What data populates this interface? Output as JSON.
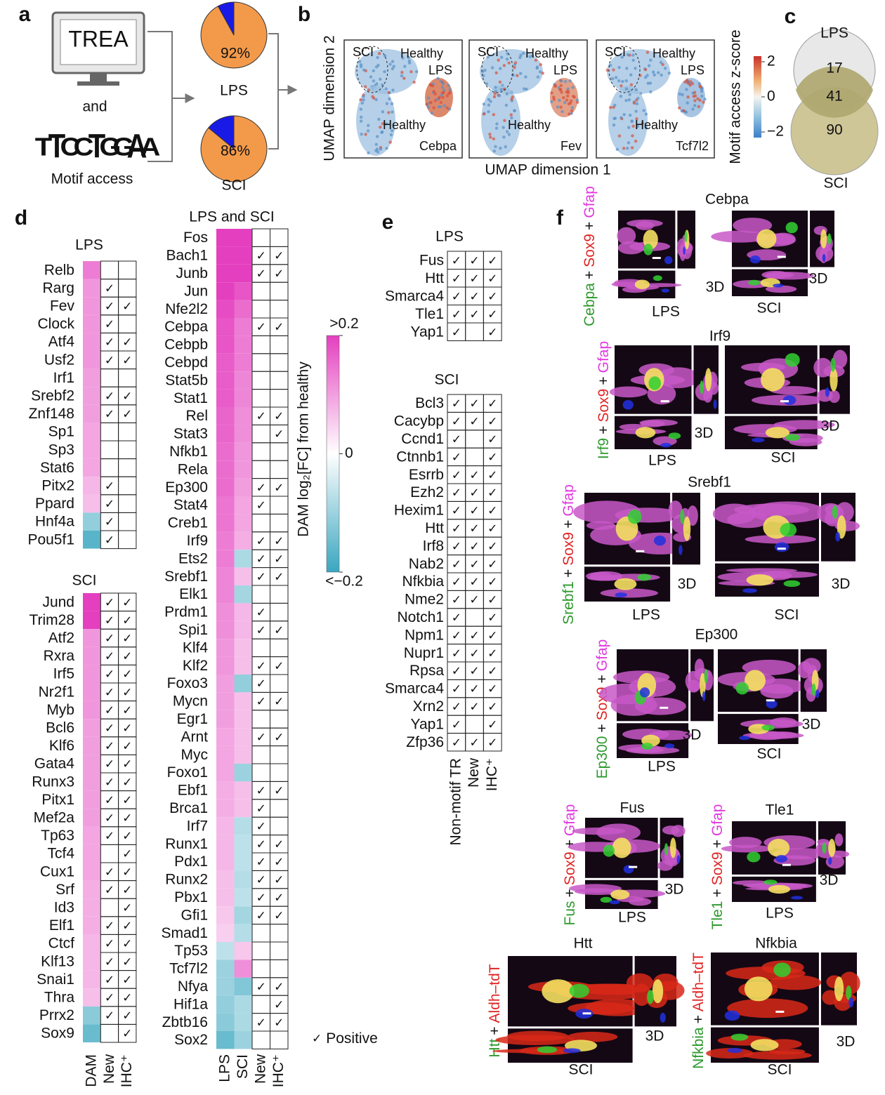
{
  "panel_a": {
    "label": "a",
    "monitor_text": "TREA",
    "and": "and",
    "motif_logo": [
      "T",
      "T",
      "C",
      "C",
      "T",
      "G",
      "G",
      "A",
      "A"
    ],
    "logo_colors": [
      "#d62020",
      "#d62020",
      "#2040d0",
      "#2040d0",
      "#d62020",
      "#e8a020",
      "#e8a020",
      "#20a020",
      "#20a020"
    ],
    "motif_access": "Motif access",
    "pies": [
      {
        "name": "LPS",
        "value": 92,
        "value_label": "92%"
      },
      {
        "name": "SCI",
        "value": 86,
        "value_label": "86%"
      }
    ],
    "pie_colors": [
      "#f39a4a",
      "#1a1ae6"
    ]
  },
  "panel_b": {
    "label": "b",
    "xlabel": "UMAP dimension 1",
    "ylabel": "UMAP dimension 2",
    "genes": [
      "Cebpa",
      "Fev",
      "Tcf7l2"
    ],
    "regions": [
      "SCI",
      "Healthy",
      "LPS",
      "Healthy"
    ],
    "colorbar": {
      "title": "Motif access z-score",
      "lim": [
        -2,
        2
      ],
      "ticks": [
        2,
        0,
        {
          "value": -2,
          "label": "−2"
        }
      ]
    }
  },
  "panel_c": {
    "label": "c",
    "sets": [
      "LPS",
      "SCI"
    ],
    "lps_only": 17,
    "both": 41,
    "sci_only": 90
  },
  "panel_d": {
    "label": "d",
    "check": "✓",
    "legend": "Positive",
    "lps": {
      "title": "LPS",
      "rows": [
        [
          "Relb",
          0.1,
          false,
          false
        ],
        [
          "Rarg",
          0.07,
          true,
          false
        ],
        [
          "Fev",
          0.07,
          true,
          true
        ],
        [
          "Clock",
          0.07,
          true,
          false
        ],
        [
          "Atf4",
          0.07,
          true,
          true
        ],
        [
          "Usf2",
          0.07,
          true,
          true
        ],
        [
          "Irf1",
          0.06,
          false,
          false
        ],
        [
          "Srebf2",
          0.06,
          true,
          true
        ],
        [
          "Znf148",
          0.06,
          true,
          true
        ],
        [
          "Sp1",
          0.05,
          false,
          false
        ],
        [
          "Sp3",
          0.05,
          false,
          false
        ],
        [
          "Stat6",
          0.05,
          false,
          false
        ],
        [
          "Pitx2",
          0.03,
          true,
          false
        ],
        [
          "Ppard",
          0.02,
          true,
          false
        ],
        [
          "Hnf4a",
          -0.07,
          true,
          false
        ],
        [
          "Pou5f1",
          -0.14,
          true,
          false
        ]
      ]
    },
    "sci": {
      "title": "SCI",
      "columns": [
        "DAM",
        "New",
        "IHC⁺"
      ],
      "rows": [
        [
          "Jund",
          0.18,
          true,
          true
        ],
        [
          "Trim28",
          0.18,
          true,
          true
        ],
        [
          "Atf2",
          0.07,
          true,
          true
        ],
        [
          "Rxra",
          0.07,
          true,
          true
        ],
        [
          "Irf5",
          0.07,
          true,
          true
        ],
        [
          "Nr2f1",
          0.07,
          true,
          true
        ],
        [
          "Myb",
          0.07,
          true,
          true
        ],
        [
          "Bcl6",
          0.06,
          true,
          true
        ],
        [
          "Klf6",
          0.06,
          true,
          true
        ],
        [
          "Gata4",
          0.06,
          true,
          true
        ],
        [
          "Runx3",
          0.06,
          true,
          true
        ],
        [
          "Pitx1",
          0.06,
          true,
          true
        ],
        [
          "Mef2a",
          0.06,
          true,
          true
        ],
        [
          "Tp63",
          0.05,
          true,
          true
        ],
        [
          "Tcf4",
          0.05,
          false,
          true
        ],
        [
          "Cux1",
          0.05,
          true,
          true
        ],
        [
          "Srf",
          0.04,
          true,
          true
        ],
        [
          "Id3",
          0.04,
          false,
          true
        ],
        [
          "Elf1",
          0.04,
          true,
          true
        ],
        [
          "Ctcf",
          0.03,
          true,
          true
        ],
        [
          "Klf13",
          0.03,
          true,
          true
        ],
        [
          "Snai1",
          0.03,
          true,
          true
        ],
        [
          "Thra",
          0.02,
          true,
          true
        ],
        [
          "Prrx2",
          -0.08,
          true,
          true
        ],
        [
          "Sox9",
          -0.12,
          false,
          true
        ]
      ]
    },
    "both": {
      "title": "LPS and SCI",
      "columns": [
        "LPS",
        "SCI",
        "New",
        "IHC⁺"
      ],
      "rows": [
        [
          "Fos",
          0.2,
          0.2,
          false,
          false
        ],
        [
          "Bach1",
          0.2,
          0.2,
          true,
          true
        ],
        [
          "Junb",
          0.2,
          0.2,
          true,
          true
        ],
        [
          "Jun",
          0.18,
          0.15,
          false,
          false
        ],
        [
          "Nfe2l2",
          0.16,
          0.12,
          false,
          false
        ],
        [
          "Cebpa",
          0.15,
          0.1,
          true,
          true
        ],
        [
          "Cebpb",
          0.15,
          0.1,
          false,
          false
        ],
        [
          "Cebpd",
          0.14,
          0.1,
          false,
          false
        ],
        [
          "Stat5b",
          0.14,
          0.09,
          false,
          false
        ],
        [
          "Stat1",
          0.14,
          0.09,
          false,
          false
        ],
        [
          "Rel",
          0.13,
          0.08,
          true,
          true
        ],
        [
          "Stat3",
          0.13,
          0.08,
          false,
          true
        ],
        [
          "Nfkb1",
          0.12,
          0.07,
          false,
          false
        ],
        [
          "Rela",
          0.12,
          0.07,
          false,
          false
        ],
        [
          "Ep300",
          0.12,
          0.06,
          true,
          true
        ],
        [
          "Stat4",
          0.11,
          0.05,
          true,
          false
        ],
        [
          "Creb1",
          0.11,
          0.05,
          false,
          false
        ],
        [
          "Irf9",
          0.1,
          0.04,
          true,
          true
        ],
        [
          "Ets2",
          0.1,
          -0.04,
          true,
          true
        ],
        [
          "Srebf1",
          0.09,
          0.02,
          true,
          true
        ],
        [
          "Elk1",
          0.09,
          -0.05,
          false,
          false
        ],
        [
          "Prdm1",
          0.08,
          0.03,
          true,
          false
        ],
        [
          "Spi1",
          0.08,
          0.03,
          true,
          true
        ],
        [
          "Klf4",
          0.07,
          0.02,
          false,
          false
        ],
        [
          "Klf2",
          0.07,
          0.02,
          true,
          true
        ],
        [
          "Foxo3",
          0.06,
          -0.07,
          true,
          false
        ],
        [
          "Mycn",
          0.06,
          0.02,
          true,
          true
        ],
        [
          "Egr1",
          0.06,
          0.02,
          false,
          false
        ],
        [
          "Arnt",
          0.05,
          0.02,
          true,
          true
        ],
        [
          "Myc",
          0.05,
          0.02,
          false,
          false
        ],
        [
          "Foxo1",
          0.05,
          -0.06,
          false,
          false
        ],
        [
          "Ebf1",
          0.04,
          0.02,
          true,
          true
        ],
        [
          "Brca1",
          0.04,
          0.02,
          true,
          false
        ],
        [
          "Irf7",
          0.03,
          -0.03,
          true,
          false
        ],
        [
          "Runx1",
          0.03,
          -0.02,
          true,
          true
        ],
        [
          "Pdx1",
          0.03,
          -0.02,
          true,
          true
        ],
        [
          "Runx2",
          0.02,
          -0.03,
          true,
          true
        ],
        [
          "Pbx1",
          0.02,
          -0.02,
          true,
          true
        ],
        [
          "Gfi1",
          0.01,
          -0.05,
          true,
          true
        ],
        [
          "Smad1",
          0,
          -0.03,
          false,
          false
        ],
        [
          "Tp53",
          -0.02,
          0.01,
          false,
          false
        ],
        [
          "Tcf7l2",
          -0.06,
          0.08,
          false,
          false
        ],
        [
          "Nfya",
          -0.06,
          -0.09,
          true,
          true
        ],
        [
          "Hif1a",
          -0.07,
          -0.04,
          false,
          true
        ],
        [
          "Zbtb16",
          -0.08,
          -0.04,
          true,
          true
        ],
        [
          "Sox2",
          -0.12,
          -0.06,
          false,
          false
        ]
      ]
    },
    "colorbar": {
      "title": "DAM log₂[FC] from healthy",
      "lim": [
        -0.2,
        0.2
      ],
      "ticks": [
        {
          "value": 0.2,
          "label": ">0.2"
        },
        0,
        {
          "value": -0.2,
          "label": "<−0.2"
        }
      ],
      "colors": [
        "#3aa6bf",
        "#ffffff",
        "#e43fbf"
      ]
    }
  },
  "panel_e": {
    "label": "e",
    "check": "✓",
    "columns": [
      "Non-motif TR",
      "New",
      "IHC⁺"
    ],
    "lps": {
      "title": "LPS",
      "rows": [
        [
          "Fus",
          true,
          true,
          true
        ],
        [
          "Htt",
          true,
          true,
          true
        ],
        [
          "Smarca4",
          true,
          true,
          true
        ],
        [
          "Tle1",
          true,
          true,
          true
        ],
        [
          "Yap1",
          true,
          false,
          true
        ]
      ]
    },
    "sci": {
      "title": "SCI",
      "rows": [
        [
          "Bcl3",
          true,
          true,
          true
        ],
        [
          "Cacybp",
          true,
          true,
          true
        ],
        [
          "Ccnd1",
          true,
          false,
          true
        ],
        [
          "Ctnnb1",
          true,
          false,
          true
        ],
        [
          "Esrrb",
          true,
          true,
          true
        ],
        [
          "Ezh2",
          true,
          true,
          true
        ],
        [
          "Hexim1",
          true,
          true,
          true
        ],
        [
          "Htt",
          true,
          true,
          true
        ],
        [
          "Irf8",
          true,
          true,
          true
        ],
        [
          "Nab2",
          true,
          true,
          true
        ],
        [
          "Nfkbia",
          true,
          true,
          true
        ],
        [
          "Nme2",
          true,
          true,
          true
        ],
        [
          "Notch1",
          true,
          false,
          true
        ],
        [
          "Npm1",
          true,
          true,
          true
        ],
        [
          "Nupr1",
          true,
          true,
          true
        ],
        [
          "Rpsa",
          true,
          true,
          true
        ],
        [
          "Smarca4",
          true,
          true,
          true
        ],
        [
          "Xrn2",
          true,
          true,
          true
        ],
        [
          "Yap1",
          true,
          false,
          true
        ],
        [
          "Zfp36",
          true,
          true,
          true
        ]
      ]
    }
  },
  "panel_f": {
    "label": "f",
    "plus": "+",
    "three_d": "3D",
    "items": [
      {
        "title": "Cebpa",
        "stain": [
          "Cebpa",
          "Sox9",
          "Gfap"
        ],
        "colors": [
          "#2e9a2e",
          "#e02424",
          "#e23ae0"
        ],
        "conditions": [
          "LPS",
          "SCI"
        ]
      },
      {
        "title": "Irf9",
        "stain": [
          "Irf9",
          "Sox9",
          "Gfap"
        ],
        "colors": [
          "#2e9a2e",
          "#e02424",
          "#e23ae0"
        ],
        "conditions": [
          "LPS",
          "SCI"
        ]
      },
      {
        "title": "Srebf1",
        "stain": [
          "Srebf1",
          "Sox9",
          "Gfap"
        ],
        "colors": [
          "#2e9a2e",
          "#e02424",
          "#e23ae0"
        ],
        "conditions": [
          "LPS",
          "SCI"
        ]
      },
      {
        "title": "Ep300",
        "stain": [
          "Ep300",
          "Sox9",
          "Gfap"
        ],
        "colors": [
          "#2e9a2e",
          "#e02424",
          "#e23ae0"
        ],
        "conditions": [
          "LPS",
          "SCI"
        ]
      },
      {
        "title": "Fus",
        "stain": [
          "Fus",
          "Sox9",
          "Gfap"
        ],
        "colors": [
          "#2e9a2e",
          "#e02424",
          "#e23ae0"
        ],
        "conditions": [
          "LPS"
        ]
      },
      {
        "title": "Tle1",
        "stain": [
          "Tle1",
          "Sox9",
          "Gfap"
        ],
        "colors": [
          "#2e9a2e",
          "#e02424",
          "#e23ae0"
        ],
        "conditions": [
          "LPS"
        ]
      },
      {
        "title": "Htt",
        "stain": [
          "Htt",
          "Aldh–tdT"
        ],
        "colors": [
          "#2e9a2e",
          "#e02424"
        ],
        "conditions": [
          "SCI"
        ]
      },
      {
        "title": "Nfkbia",
        "stain": [
          "Nfkbia",
          "Aldh–tdT"
        ],
        "colors": [
          "#2e9a2e",
          "#e02424"
        ],
        "conditions": [
          "SCI"
        ]
      }
    ]
  }
}
